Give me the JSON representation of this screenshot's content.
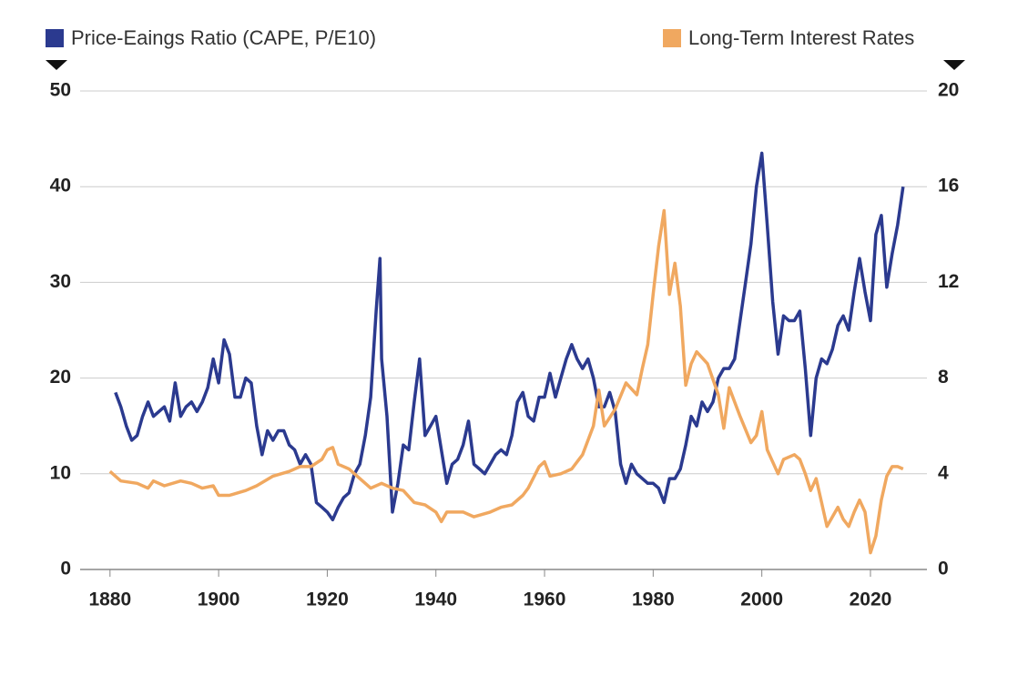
{
  "chart_data": {
    "type": "line",
    "ylim": [
      0,
      50
    ],
    "yticks": [
      0,
      10,
      20,
      30,
      40,
      50
    ],
    "y2lim": [
      0,
      20
    ],
    "y2ticks": [
      0,
      4,
      8,
      12,
      16,
      20
    ],
    "xlim": [
      1874.5,
      2030.4
    ],
    "xticks": [
      1880,
      1900,
      1920,
      1940,
      1960,
      1980,
      2000,
      2020
    ],
    "grid": true,
    "legend": "top",
    "series": [
      {
        "name": "Price-Eaings Ratio (CAPE, P/E10)",
        "color": "#2b3a8f",
        "axis": "y",
        "x": [
          1881,
          1882,
          1883,
          1884,
          1885,
          1886,
          1887,
          1888,
          1889,
          1890,
          1891,
          1892,
          1893,
          1894,
          1895,
          1896,
          1897,
          1898,
          1899,
          1900,
          1901,
          1902,
          1903,
          1904,
          1905,
          1906,
          1907,
          1908,
          1909,
          1910,
          1911,
          1912,
          1913,
          1914,
          1915,
          1916,
          1917,
          1918,
          1919,
          1920,
          1921,
          1922,
          1923,
          1924,
          1925,
          1926,
          1927,
          1928,
          1929,
          1929.7,
          1930,
          1931,
          1932,
          1933,
          1934,
          1935,
          1936,
          1937,
          1938,
          1939,
          1940,
          1941,
          1942,
          1943,
          1944,
          1945,
          1946,
          1947,
          1948,
          1949,
          1950,
          1951,
          1952,
          1953,
          1954,
          1955,
          1956,
          1957,
          1958,
          1959,
          1960,
          1961,
          1962,
          1963,
          1964,
          1965,
          1966,
          1967,
          1968,
          1969,
          1970,
          1971,
          1972,
          1973,
          1974,
          1975,
          1976,
          1977,
          1978,
          1979,
          1980,
          1981,
          1982,
          1983,
          1984,
          1985,
          1986,
          1987,
          1988,
          1989,
          1990,
          1991,
          1992,
          1993,
          1994,
          1995,
          1996,
          1997,
          1998,
          1999,
          2000,
          2001,
          2002,
          2003,
          2004,
          2005,
          2006,
          2007,
          2008,
          2009,
          2010,
          2011,
          2012,
          2013,
          2014,
          2015,
          2016,
          2017,
          2018,
          2019,
          2020,
          2021,
          2022,
          2023,
          2024,
          2025,
          2026
        ],
        "values": [
          18.5,
          17,
          15,
          13.5,
          14,
          16,
          17.5,
          16,
          16.5,
          17,
          15.5,
          19.5,
          16,
          17,
          17.5,
          16.5,
          17.5,
          19,
          22,
          19.5,
          24,
          22.5,
          18,
          18,
          20,
          19.5,
          15,
          12,
          14.5,
          13.5,
          14.5,
          14.5,
          13,
          12.5,
          11,
          12,
          11,
          7,
          6.5,
          6,
          5.2,
          6.5,
          7.5,
          8,
          10,
          11,
          14,
          18,
          27,
          32.5,
          22,
          16,
          6,
          9,
          13,
          12.5,
          17.5,
          22,
          14,
          15,
          16,
          12.5,
          9,
          11,
          11.5,
          13,
          15.5,
          11,
          10.5,
          10,
          11,
          12,
          12.5,
          12,
          14,
          17.5,
          18.5,
          16,
          15.5,
          18,
          18,
          20.5,
          18,
          20,
          22,
          23.5,
          22,
          21,
          22,
          20,
          17,
          17,
          18.5,
          16.5,
          11,
          9,
          11,
          10,
          9.5,
          9,
          9,
          8.5,
          7,
          9.5,
          9.5,
          10.5,
          13,
          16,
          15,
          17.5,
          16.5,
          17.5,
          20,
          21,
          21,
          22,
          26,
          30,
          34,
          40,
          43.5,
          36,
          28,
          22.5,
          26.5,
          26,
          26,
          27,
          21,
          14,
          20,
          22,
          21.5,
          23,
          25.5,
          26.5,
          25,
          29,
          32.5,
          29,
          26,
          35,
          37,
          29.5,
          33,
          36,
          40
        ]
      },
      {
        "name": "Long-Term Interest Rates",
        "color": "#f0a860",
        "axis": "y2",
        "x": [
          1880,
          1882,
          1885,
          1887,
          1888,
          1890,
          1893,
          1895,
          1897,
          1899,
          1900,
          1902,
          1905,
          1907,
          1910,
          1913,
          1915,
          1917,
          1919,
          1920,
          1921,
          1922,
          1924,
          1926,
          1928,
          1930,
          1932,
          1934,
          1936,
          1938,
          1940,
          1941,
          1942,
          1945,
          1947,
          1950,
          1952,
          1954,
          1956,
          1957,
          1959,
          1960,
          1961,
          1963,
          1965,
          1967,
          1969,
          1970,
          1971,
          1973,
          1975,
          1977,
          1978,
          1979,
          1980,
          1981,
          1982,
          1983,
          1984,
          1985,
          1986,
          1987,
          1988,
          1990,
          1992,
          1993,
          1994,
          1995,
          1996,
          1998,
          1999,
          2000,
          2001,
          2003,
          2004,
          2006,
          2007,
          2008,
          2009,
          2010,
          2011,
          2012,
          2013,
          2014,
          2015,
          2016,
          2017,
          2018,
          2019,
          2020,
          2021,
          2022,
          2023,
          2024,
          2025,
          2026
        ],
        "values": [
          4.1,
          3.7,
          3.6,
          3.4,
          3.7,
          3.5,
          3.7,
          3.6,
          3.4,
          3.5,
          3.1,
          3.1,
          3.3,
          3.5,
          3.9,
          4.1,
          4.3,
          4.3,
          4.6,
          5.0,
          5.1,
          4.4,
          4.2,
          3.8,
          3.4,
          3.6,
          3.4,
          3.3,
          2.8,
          2.7,
          2.4,
          2.0,
          2.4,
          2.4,
          2.2,
          2.4,
          2.6,
          2.7,
          3.1,
          3.4,
          4.3,
          4.5,
          3.9,
          4.0,
          4.2,
          4.8,
          6.0,
          7.5,
          6.0,
          6.7,
          7.8,
          7.3,
          8.4,
          9.4,
          11.5,
          13.5,
          15.0,
          11.5,
          12.8,
          11.0,
          7.7,
          8.6,
          9.1,
          8.6,
          7.3,
          5.9,
          7.6,
          7.0,
          6.4,
          5.3,
          5.6,
          6.6,
          5.0,
          4.0,
          4.6,
          4.8,
          4.6,
          4.0,
          3.3,
          3.8,
          2.8,
          1.8,
          2.2,
          2.6,
          2.1,
          1.8,
          2.4,
          2.9,
          2.4,
          0.7,
          1.4,
          2.9,
          3.9,
          4.3,
          4.3,
          4.2
        ]
      }
    ]
  }
}
